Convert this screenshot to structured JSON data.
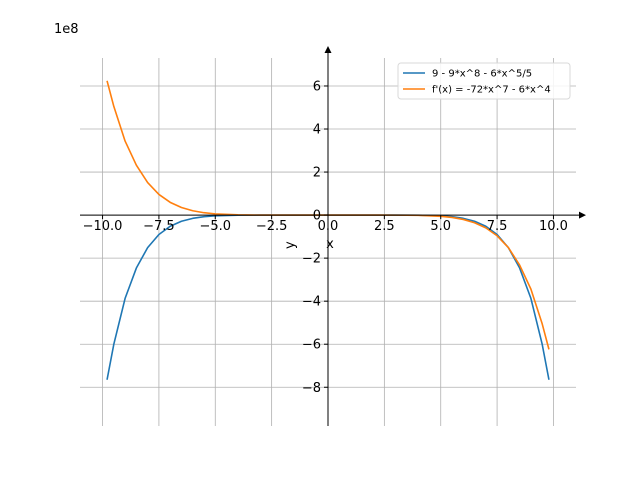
{
  "chart_data": {
    "type": "line",
    "title": "",
    "xlabel": "x",
    "ylabel": "y",
    "y_offset_label": "1e8",
    "xlim": [
      -11.0,
      11.0
    ],
    "ylim": [
      -9.8,
      7.3
    ],
    "x_ticks": [
      -10.0,
      -7.5,
      -5.0,
      -2.5,
      0.0,
      2.5,
      5.0,
      7.5,
      10.0
    ],
    "x_tick_labels": [
      "−10.0",
      "−7.5",
      "−5.0",
      "−2.5",
      "0.0",
      "2.5",
      "5.0",
      "7.5",
      "10.0"
    ],
    "y_ticks": [
      -8,
      -6,
      -4,
      -2,
      0,
      2,
      4,
      6
    ],
    "y_tick_labels": [
      "−8",
      "−6",
      "−4",
      "−2",
      "0",
      "2",
      "4",
      "6"
    ],
    "grid": true,
    "legend_position": "top-right",
    "series": [
      {
        "name": "9 - 9*x^8 - 6*x^5/5",
        "color": "#1f77b4",
        "x": [
          -9.8,
          -9.5,
          -9.0,
          -8.5,
          -8.0,
          -7.5,
          -7.0,
          -6.5,
          -6.0,
          -5.5,
          -5.0,
          -4.0,
          -3.0,
          -2.0,
          0.0,
          2.0,
          3.0,
          4.0,
          5.0,
          5.5,
          6.0,
          6.5,
          7.0,
          7.5,
          8.0,
          8.5,
          9.0,
          9.5,
          9.8
        ],
        "y": [
          -7.65,
          -6.0,
          -3.87,
          -2.46,
          -1.51,
          -0.901,
          -0.519,
          -0.287,
          -0.151,
          -0.0754,
          -0.0352,
          -0.0059,
          -0.00059,
          -2.3e-05,
          0.0,
          -2.3e-05,
          -0.00059,
          -0.0059,
          -0.0352,
          -0.0754,
          -0.151,
          -0.287,
          -0.519,
          -0.901,
          -1.51,
          -2.46,
          -3.87,
          -6.0,
          -7.65
        ]
      },
      {
        "name": "f'(x) = -72*x^7 - 6*x^4",
        "color": "#ff7f0e",
        "x": [
          -9.8,
          -9.5,
          -9.0,
          -8.5,
          -8.0,
          -7.5,
          -7.0,
          -6.5,
          -6.0,
          -5.5,
          -5.0,
          -4.0,
          -3.0,
          -2.0,
          0.0,
          2.0,
          3.0,
          4.0,
          5.0,
          5.5,
          6.0,
          6.5,
          7.0,
          7.5,
          8.0,
          8.5,
          9.0,
          9.5,
          9.8
        ],
        "y": [
          6.24,
          5.05,
          3.44,
          2.32,
          1.51,
          0.961,
          0.593,
          0.353,
          0.201,
          0.11,
          0.0563,
          0.0118,
          0.00157,
          9.22e-05,
          0.0,
          -9.31e-05,
          -0.00158,
          -0.0118,
          -0.0563,
          -0.11,
          -0.202,
          -0.354,
          -0.593,
          -0.961,
          -1.51,
          -2.32,
          -3.44,
          -5.05,
          -6.24
        ]
      }
    ]
  }
}
